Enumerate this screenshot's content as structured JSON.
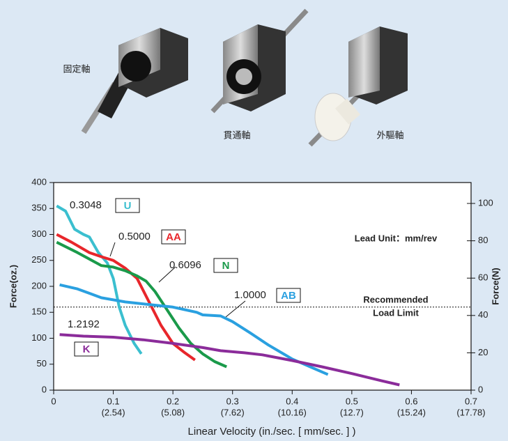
{
  "products": [
    {
      "label": "固定軸"
    },
    {
      "label": "貫通軸"
    },
    {
      "label": "外驅軸"
    }
  ],
  "chart_data": {
    "type": "line",
    "xlabel": "Linear Velocity (in./sec. [ mm/sec. ] )",
    "ylabel": "Force(oz.)",
    "y2label": "Force(N)",
    "xlim": [
      0,
      0.7
    ],
    "xticks": [
      0,
      0.1,
      0.2,
      0.3,
      0.4,
      0.5,
      0.6,
      0.7
    ],
    "xticks_mm": [
      null,
      "(2.54)",
      "(5.08)",
      "(7.62)",
      "(10.16)",
      "(12.7)",
      "(15.24)",
      "(17.78)"
    ],
    "ylim": [
      0,
      400
    ],
    "yticks": [
      0,
      50,
      100,
      150,
      200,
      250,
      300,
      350,
      400
    ],
    "y2lim": [
      0,
      111.2
    ],
    "y2ticks": [
      0,
      20,
      40,
      60,
      80,
      100
    ],
    "lead_unit": "Lead Unit：mm/rev",
    "limit_line": 160,
    "limit_label": [
      "Recommended",
      "Load Limit"
    ],
    "series": [
      {
        "name": "U",
        "lead": "0.3048",
        "color": "#3bbfcf",
        "x": [
          0.005,
          0.02,
          0.035,
          0.05,
          0.06,
          0.075,
          0.09,
          0.1,
          0.11,
          0.12,
          0.135,
          0.147
        ],
        "values": [
          355,
          345,
          310,
          300,
          295,
          265,
          245,
          215,
          160,
          125,
          90,
          70
        ]
      },
      {
        "name": "AA",
        "lead": "0.5000",
        "color": "#e8262b",
        "x": [
          0.005,
          0.03,
          0.06,
          0.08,
          0.1,
          0.12,
          0.14,
          0.16,
          0.18,
          0.2,
          0.22,
          0.237
        ],
        "values": [
          300,
          285,
          265,
          257,
          250,
          235,
          215,
          170,
          125,
          90,
          72,
          58
        ]
      },
      {
        "name": "N",
        "lead": "0.6096",
        "color": "#1a9a4a",
        "x": [
          0.005,
          0.04,
          0.08,
          0.1,
          0.12,
          0.14,
          0.155,
          0.17,
          0.19,
          0.21,
          0.23,
          0.25,
          0.27,
          0.29
        ],
        "values": [
          285,
          265,
          240,
          237,
          230,
          220,
          210,
          190,
          155,
          120,
          90,
          70,
          55,
          45
        ]
      },
      {
        "name": "AB",
        "lead": "1.0000",
        "color": "#2aa0e0",
        "x": [
          0.01,
          0.04,
          0.08,
          0.12,
          0.16,
          0.2,
          0.24,
          0.25,
          0.28,
          0.3,
          0.33,
          0.36,
          0.4,
          0.44,
          0.46
        ],
        "values": [
          203,
          195,
          178,
          170,
          165,
          160,
          150,
          145,
          143,
          132,
          110,
          87,
          60,
          40,
          30
        ]
      },
      {
        "name": "K",
        "lead": "1.2192",
        "color": "#8b2c9a",
        "x": [
          0.01,
          0.05,
          0.1,
          0.15,
          0.2,
          0.25,
          0.28,
          0.32,
          0.35,
          0.4,
          0.45,
          0.5,
          0.55,
          0.58
        ],
        "values": [
          107,
          104,
          102,
          97,
          90,
          82,
          76,
          72,
          68,
          57,
          45,
          32,
          18,
          10
        ]
      }
    ]
  }
}
